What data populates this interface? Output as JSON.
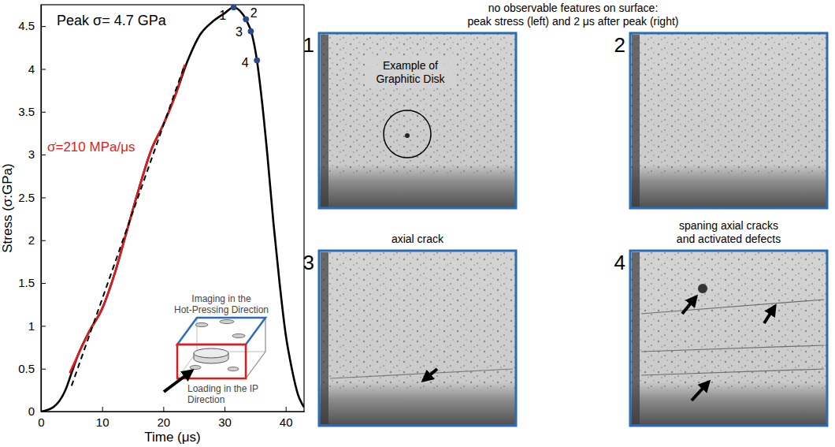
{
  "chart_data": {
    "type": "line",
    "x_label": "Time (μs)",
    "y_label": "Stress (σ:GPa)",
    "xlim": [
      0,
      43
    ],
    "ylim": [
      0,
      4.75
    ],
    "xticks": [
      0,
      10,
      20,
      30,
      40
    ],
    "yticks": [
      0,
      0.5,
      1,
      1.5,
      2,
      2.5,
      3,
      3.5,
      4,
      4.5
    ],
    "grid": false,
    "series": [
      {
        "type": "line",
        "color": "#000000",
        "line_style": "solid",
        "x": [
          0,
          2,
          4,
          5,
          6,
          8,
          10,
          12,
          14,
          16,
          18,
          20,
          22,
          24,
          26,
          28,
          30,
          31.5,
          32.5,
          33.5,
          34.5,
          35.3,
          36,
          37,
          38,
          39,
          40,
          41,
          42,
          43
        ],
        "values": [
          0,
          0.05,
          0.25,
          0.45,
          0.65,
          0.95,
          1.2,
          1.6,
          2.1,
          2.6,
          3.05,
          3.35,
          3.7,
          4.1,
          4.4,
          4.55,
          4.65,
          4.72,
          4.68,
          4.58,
          4.4,
          4.1,
          3.7,
          3.0,
          2.2,
          1.5,
          0.9,
          0.5,
          0.2,
          0.05
        ]
      },
      {
        "type": "line",
        "color": "#e31a1c",
        "line_style": "solid",
        "x": [
          4.7,
          6,
          8,
          10,
          12,
          14,
          16,
          18,
          20,
          22,
          23.5
        ],
        "values": [
          0.45,
          0.65,
          0.95,
          1.2,
          1.6,
          2.1,
          2.6,
          3.05,
          3.35,
          3.7,
          4.05
        ]
      },
      {
        "type": "line",
        "color": "#000000",
        "line_style": "dashed",
        "x": [
          5,
          23.5
        ],
        "values": [
          0.3,
          4.05
        ]
      },
      {
        "type": "scatter",
        "color": "#2b4a8c",
        "marker": "circle",
        "x": [
          31.5,
          33.5,
          34.3,
          35.3
        ],
        "values": [
          4.72,
          4.58,
          4.44,
          4.1
        ],
        "labels": [
          1,
          2,
          3,
          4
        ]
      }
    ],
    "annotations": [
      {
        "text": "Peak σ= 4.7 GPa",
        "color": "#000000"
      },
      {
        "text": "σ̇=210 MPa/μs",
        "color": "#e31a1c"
      }
    ],
    "inset": {
      "top_label": [
        "Imaging in the",
        "Hot-Pressing Direction"
      ],
      "top_color": "#2a6cb5",
      "bottom_label": [
        "Loading in the IP",
        "Direction"
      ],
      "bottom_color": "#e31a1c"
    }
  },
  "figure_panels": {
    "header": [
      "no observable features on surface:",
      "peak stress (left) and 2 μs after peak (right)"
    ],
    "border_color": "#2a6cb5",
    "panels": [
      {
        "number": 1,
        "annotation": [
          "Example of",
          "Graphitic Disk"
        ]
      },
      {
        "number": 2
      },
      {
        "number": 3,
        "caption": [
          "axial crack"
        ]
      },
      {
        "number": 4,
        "caption": [
          "spaning axial cracks",
          "and activated defects"
        ]
      }
    ]
  }
}
